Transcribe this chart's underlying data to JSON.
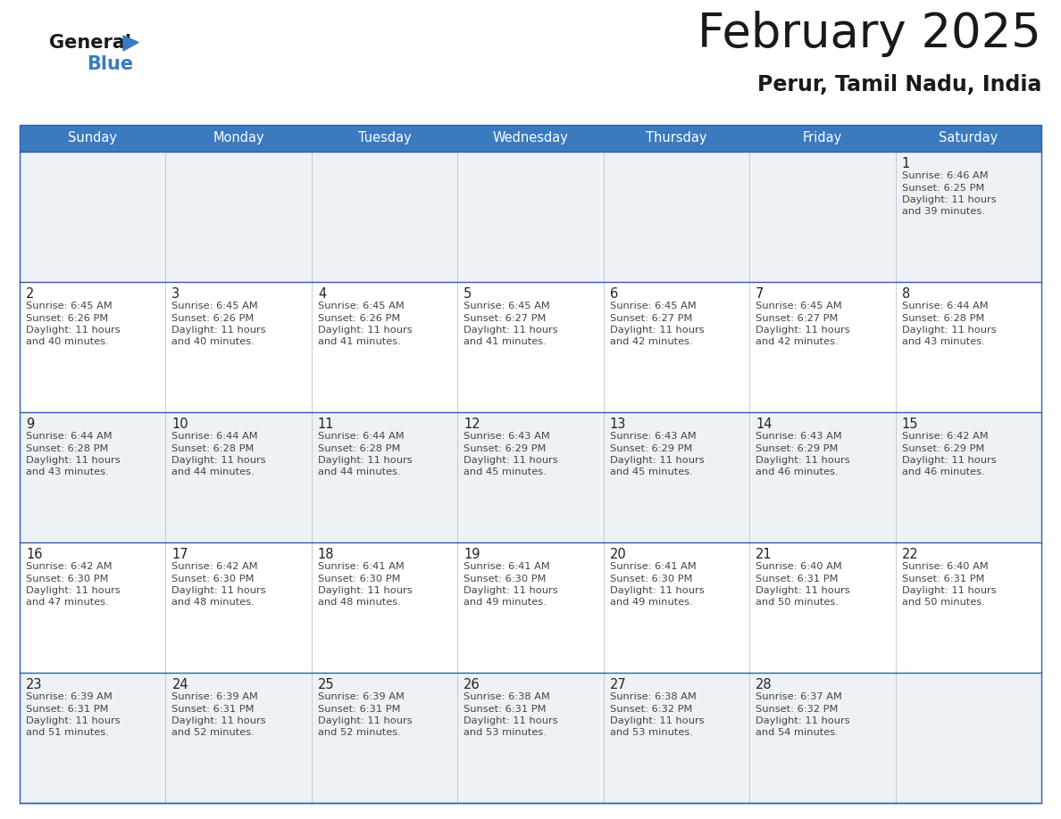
{
  "title": "February 2025",
  "subtitle": "Perur, Tamil Nadu, India",
  "header_bg_color": "#3a7abf",
  "header_text_color": "#ffffff",
  "row_bg_colors": [
    "#eef2f7",
    "#ffffff",
    "#eef2f7",
    "#ffffff",
    "#eef2f7"
  ],
  "grid_line_color": "#2e5fa3",
  "text_color": "#444444",
  "day_number_color": "#222222",
  "days_of_week": [
    "Sunday",
    "Monday",
    "Tuesday",
    "Wednesday",
    "Thursday",
    "Friday",
    "Saturday"
  ],
  "calendar_data": [
    [
      null,
      null,
      null,
      null,
      null,
      null,
      {
        "day": "1",
        "sunrise": "6:46 AM",
        "sunset": "6:25 PM",
        "daylight_line1": "11 hours",
        "daylight_line2": "and 39 minutes."
      }
    ],
    [
      {
        "day": "2",
        "sunrise": "6:45 AM",
        "sunset": "6:26 PM",
        "daylight_line1": "11 hours",
        "daylight_line2": "and 40 minutes."
      },
      {
        "day": "3",
        "sunrise": "6:45 AM",
        "sunset": "6:26 PM",
        "daylight_line1": "11 hours",
        "daylight_line2": "and 40 minutes."
      },
      {
        "day": "4",
        "sunrise": "6:45 AM",
        "sunset": "6:26 PM",
        "daylight_line1": "11 hours",
        "daylight_line2": "and 41 minutes."
      },
      {
        "day": "5",
        "sunrise": "6:45 AM",
        "sunset": "6:27 PM",
        "daylight_line1": "11 hours",
        "daylight_line2": "and 41 minutes."
      },
      {
        "day": "6",
        "sunrise": "6:45 AM",
        "sunset": "6:27 PM",
        "daylight_line1": "11 hours",
        "daylight_line2": "and 42 minutes."
      },
      {
        "day": "7",
        "sunrise": "6:45 AM",
        "sunset": "6:27 PM",
        "daylight_line1": "11 hours",
        "daylight_line2": "and 42 minutes."
      },
      {
        "day": "8",
        "sunrise": "6:44 AM",
        "sunset": "6:28 PM",
        "daylight_line1": "11 hours",
        "daylight_line2": "and 43 minutes."
      }
    ],
    [
      {
        "day": "9",
        "sunrise": "6:44 AM",
        "sunset": "6:28 PM",
        "daylight_line1": "11 hours",
        "daylight_line2": "and 43 minutes."
      },
      {
        "day": "10",
        "sunrise": "6:44 AM",
        "sunset": "6:28 PM",
        "daylight_line1": "11 hours",
        "daylight_line2": "and 44 minutes."
      },
      {
        "day": "11",
        "sunrise": "6:44 AM",
        "sunset": "6:28 PM",
        "daylight_line1": "11 hours",
        "daylight_line2": "and 44 minutes."
      },
      {
        "day": "12",
        "sunrise": "6:43 AM",
        "sunset": "6:29 PM",
        "daylight_line1": "11 hours",
        "daylight_line2": "and 45 minutes."
      },
      {
        "day": "13",
        "sunrise": "6:43 AM",
        "sunset": "6:29 PM",
        "daylight_line1": "11 hours",
        "daylight_line2": "and 45 minutes."
      },
      {
        "day": "14",
        "sunrise": "6:43 AM",
        "sunset": "6:29 PM",
        "daylight_line1": "11 hours",
        "daylight_line2": "and 46 minutes."
      },
      {
        "day": "15",
        "sunrise": "6:42 AM",
        "sunset": "6:29 PM",
        "daylight_line1": "11 hours",
        "daylight_line2": "and 46 minutes."
      }
    ],
    [
      {
        "day": "16",
        "sunrise": "6:42 AM",
        "sunset": "6:30 PM",
        "daylight_line1": "11 hours",
        "daylight_line2": "and 47 minutes."
      },
      {
        "day": "17",
        "sunrise": "6:42 AM",
        "sunset": "6:30 PM",
        "daylight_line1": "11 hours",
        "daylight_line2": "and 48 minutes."
      },
      {
        "day": "18",
        "sunrise": "6:41 AM",
        "sunset": "6:30 PM",
        "daylight_line1": "11 hours",
        "daylight_line2": "and 48 minutes."
      },
      {
        "day": "19",
        "sunrise": "6:41 AM",
        "sunset": "6:30 PM",
        "daylight_line1": "11 hours",
        "daylight_line2": "and 49 minutes."
      },
      {
        "day": "20",
        "sunrise": "6:41 AM",
        "sunset": "6:30 PM",
        "daylight_line1": "11 hours",
        "daylight_line2": "and 49 minutes."
      },
      {
        "day": "21",
        "sunrise": "6:40 AM",
        "sunset": "6:31 PM",
        "daylight_line1": "11 hours",
        "daylight_line2": "and 50 minutes."
      },
      {
        "day": "22",
        "sunrise": "6:40 AM",
        "sunset": "6:31 PM",
        "daylight_line1": "11 hours",
        "daylight_line2": "and 50 minutes."
      }
    ],
    [
      {
        "day": "23",
        "sunrise": "6:39 AM",
        "sunset": "6:31 PM",
        "daylight_line1": "11 hours",
        "daylight_line2": "and 51 minutes."
      },
      {
        "day": "24",
        "sunrise": "6:39 AM",
        "sunset": "6:31 PM",
        "daylight_line1": "11 hours",
        "daylight_line2": "and 52 minutes."
      },
      {
        "day": "25",
        "sunrise": "6:39 AM",
        "sunset": "6:31 PM",
        "daylight_line1": "11 hours",
        "daylight_line2": "and 52 minutes."
      },
      {
        "day": "26",
        "sunrise": "6:38 AM",
        "sunset": "6:31 PM",
        "daylight_line1": "11 hours",
        "daylight_line2": "and 53 minutes."
      },
      {
        "day": "27",
        "sunrise": "6:38 AM",
        "sunset": "6:32 PM",
        "daylight_line1": "11 hours",
        "daylight_line2": "and 53 minutes."
      },
      {
        "day": "28",
        "sunrise": "6:37 AM",
        "sunset": "6:32 PM",
        "daylight_line1": "11 hours",
        "daylight_line2": "and 54 minutes."
      },
      null
    ]
  ]
}
